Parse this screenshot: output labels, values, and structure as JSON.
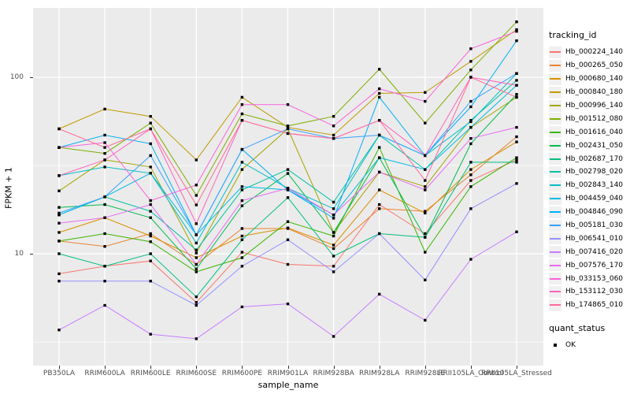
{
  "chart_data": {
    "type": "line",
    "title": "",
    "xlabel": "sample_name",
    "ylabel": "FPKM + 1",
    "y_scale": "log10",
    "ylim": [
      2.3,
      250
    ],
    "y_ticks": [
      10,
      100
    ],
    "y_minor_gridlines": [
      3.162,
      31.62
    ],
    "grid": true,
    "panel_background": "#EBEBEB",
    "gridline_color": "#FFFFFF",
    "point_shape": "filled-black-square",
    "legend_position": "right",
    "legend_title": "tracking_id",
    "quant_legend_title": "quant_status",
    "quant_legend_entries": [
      {
        "label": "OK",
        "key": "black-square-point"
      }
    ],
    "categories": [
      "PB350LA",
      "RRIM600LA",
      "RRIM600LE",
      "RRIM600SE",
      "RRIM600PE",
      "RRIM901LA",
      "RRIM928BA",
      "RRIM928LA",
      "RRIM928LE",
      "RRII105LA_Control",
      "RRII105LA_Stressed"
    ],
    "series": [
      {
        "name": "Hb_000224_140",
        "color": "#F8766D",
        "values": [
          7.7,
          8.5,
          9.1,
          5.3,
          10.2,
          8.7,
          8.5,
          19,
          13,
          26,
          34
        ]
      },
      {
        "name": "Hb_000265_050",
        "color": "#EA8331",
        "values": [
          11.8,
          11,
          13,
          8.7,
          13.9,
          13.9,
          10.7,
          18,
          17.4,
          28,
          46
        ]
      },
      {
        "name": "Hb_000680_140",
        "color": "#D89000",
        "values": [
          13.2,
          16,
          12.6,
          9.5,
          12.6,
          14,
          11.2,
          23,
          17,
          30,
          43
        ]
      },
      {
        "name": "Hb_000840_180",
        "color": "#C09B00",
        "values": [
          51,
          66,
          60,
          34,
          77,
          52,
          47,
          81,
          82,
          123,
          186
        ]
      },
      {
        "name": "Hb_000996_140",
        "color": "#A3A500",
        "values": [
          22.7,
          34,
          31,
          10.1,
          30,
          51,
          13.2,
          29,
          24,
          52,
          77
        ]
      },
      {
        "name": "Hb_001512_080",
        "color": "#7CAE00",
        "values": [
          40,
          37,
          55,
          21.4,
          62,
          53,
          60,
          111,
          55,
          110,
          206
        ]
      },
      {
        "name": "Hb_001616_040",
        "color": "#39B600",
        "values": [
          11.8,
          13,
          11.7,
          7.9,
          9.5,
          15.2,
          12.6,
          40,
          10.2,
          24,
          35
        ]
      },
      {
        "name": "Hb_002431_050",
        "color": "#00BB4E",
        "values": [
          18.3,
          19,
          16,
          8.2,
          18.7,
          28.5,
          13.2,
          35,
          12.4,
          42,
          80
        ]
      },
      {
        "name": "Hb_002687_170",
        "color": "#00BF7D",
        "values": [
          10,
          8.5,
          10,
          5.7,
          12,
          20.8,
          9.7,
          13,
          12.4,
          33,
          33
        ]
      },
      {
        "name": "Hb_002798_020",
        "color": "#00C1A3",
        "values": [
          16.6,
          21,
          17.4,
          10.5,
          23,
          30,
          19.6,
          47,
          30,
          57,
          96
        ]
      },
      {
        "name": "Hb_002843_140",
        "color": "#00BFC4",
        "values": [
          27.7,
          31,
          28.6,
          11.5,
          33,
          23.5,
          18,
          47,
          36,
          56,
          105
        ]
      },
      {
        "name": "Hb_004459_040",
        "color": "#00BAE0",
        "values": [
          16.6,
          21,
          28.6,
          12.8,
          24,
          23,
          16.6,
          35,
          30,
          52,
          90
        ]
      },
      {
        "name": "Hb_004846_090",
        "color": "#00B0F6",
        "values": [
          40,
          47,
          42,
          12.8,
          39,
          23,
          15.9,
          77,
          36,
          68,
          161
        ]
      },
      {
        "name": "Hb_005181_030",
        "color": "#35A2FF",
        "values": [
          17,
          21,
          36,
          12.8,
          39,
          51,
          45,
          47,
          36,
          73,
          105
        ]
      },
      {
        "name": "Hb_006541_010",
        "color": "#9590FF",
        "values": [
          7.0,
          7.0,
          7.0,
          5.1,
          8.5,
          12,
          7.9,
          13,
          7.1,
          18,
          25
        ]
      },
      {
        "name": "Hb_007416_020",
        "color": "#C77CFF",
        "values": [
          3.7,
          5.1,
          3.5,
          3.3,
          5.0,
          5.2,
          3.4,
          5.9,
          4.2,
          9.3,
          13.3
        ]
      },
      {
        "name": "Hb_007576_170",
        "color": "#E76BF3",
        "values": [
          14.9,
          16,
          19,
          8.7,
          20,
          23.5,
          16.6,
          29,
          23,
          45,
          52
        ]
      },
      {
        "name": "Hb_033153_060",
        "color": "#FA62DB",
        "values": [
          40,
          42.6,
          20,
          24.5,
          70,
          70,
          53,
          86,
          73,
          145,
          182
        ]
      },
      {
        "name": "Hb_153112_030",
        "color": "#FF62BC",
        "values": [
          27.7,
          34,
          51,
          14.8,
          57,
          48,
          45,
          57,
          36,
          100,
          90
        ]
      },
      {
        "name": "Hb_174865_010",
        "color": "#FF6A98",
        "values": [
          51,
          40,
          51,
          18.9,
          57,
          48,
          45,
          57,
          26,
          100,
          77
        ]
      }
    ]
  }
}
